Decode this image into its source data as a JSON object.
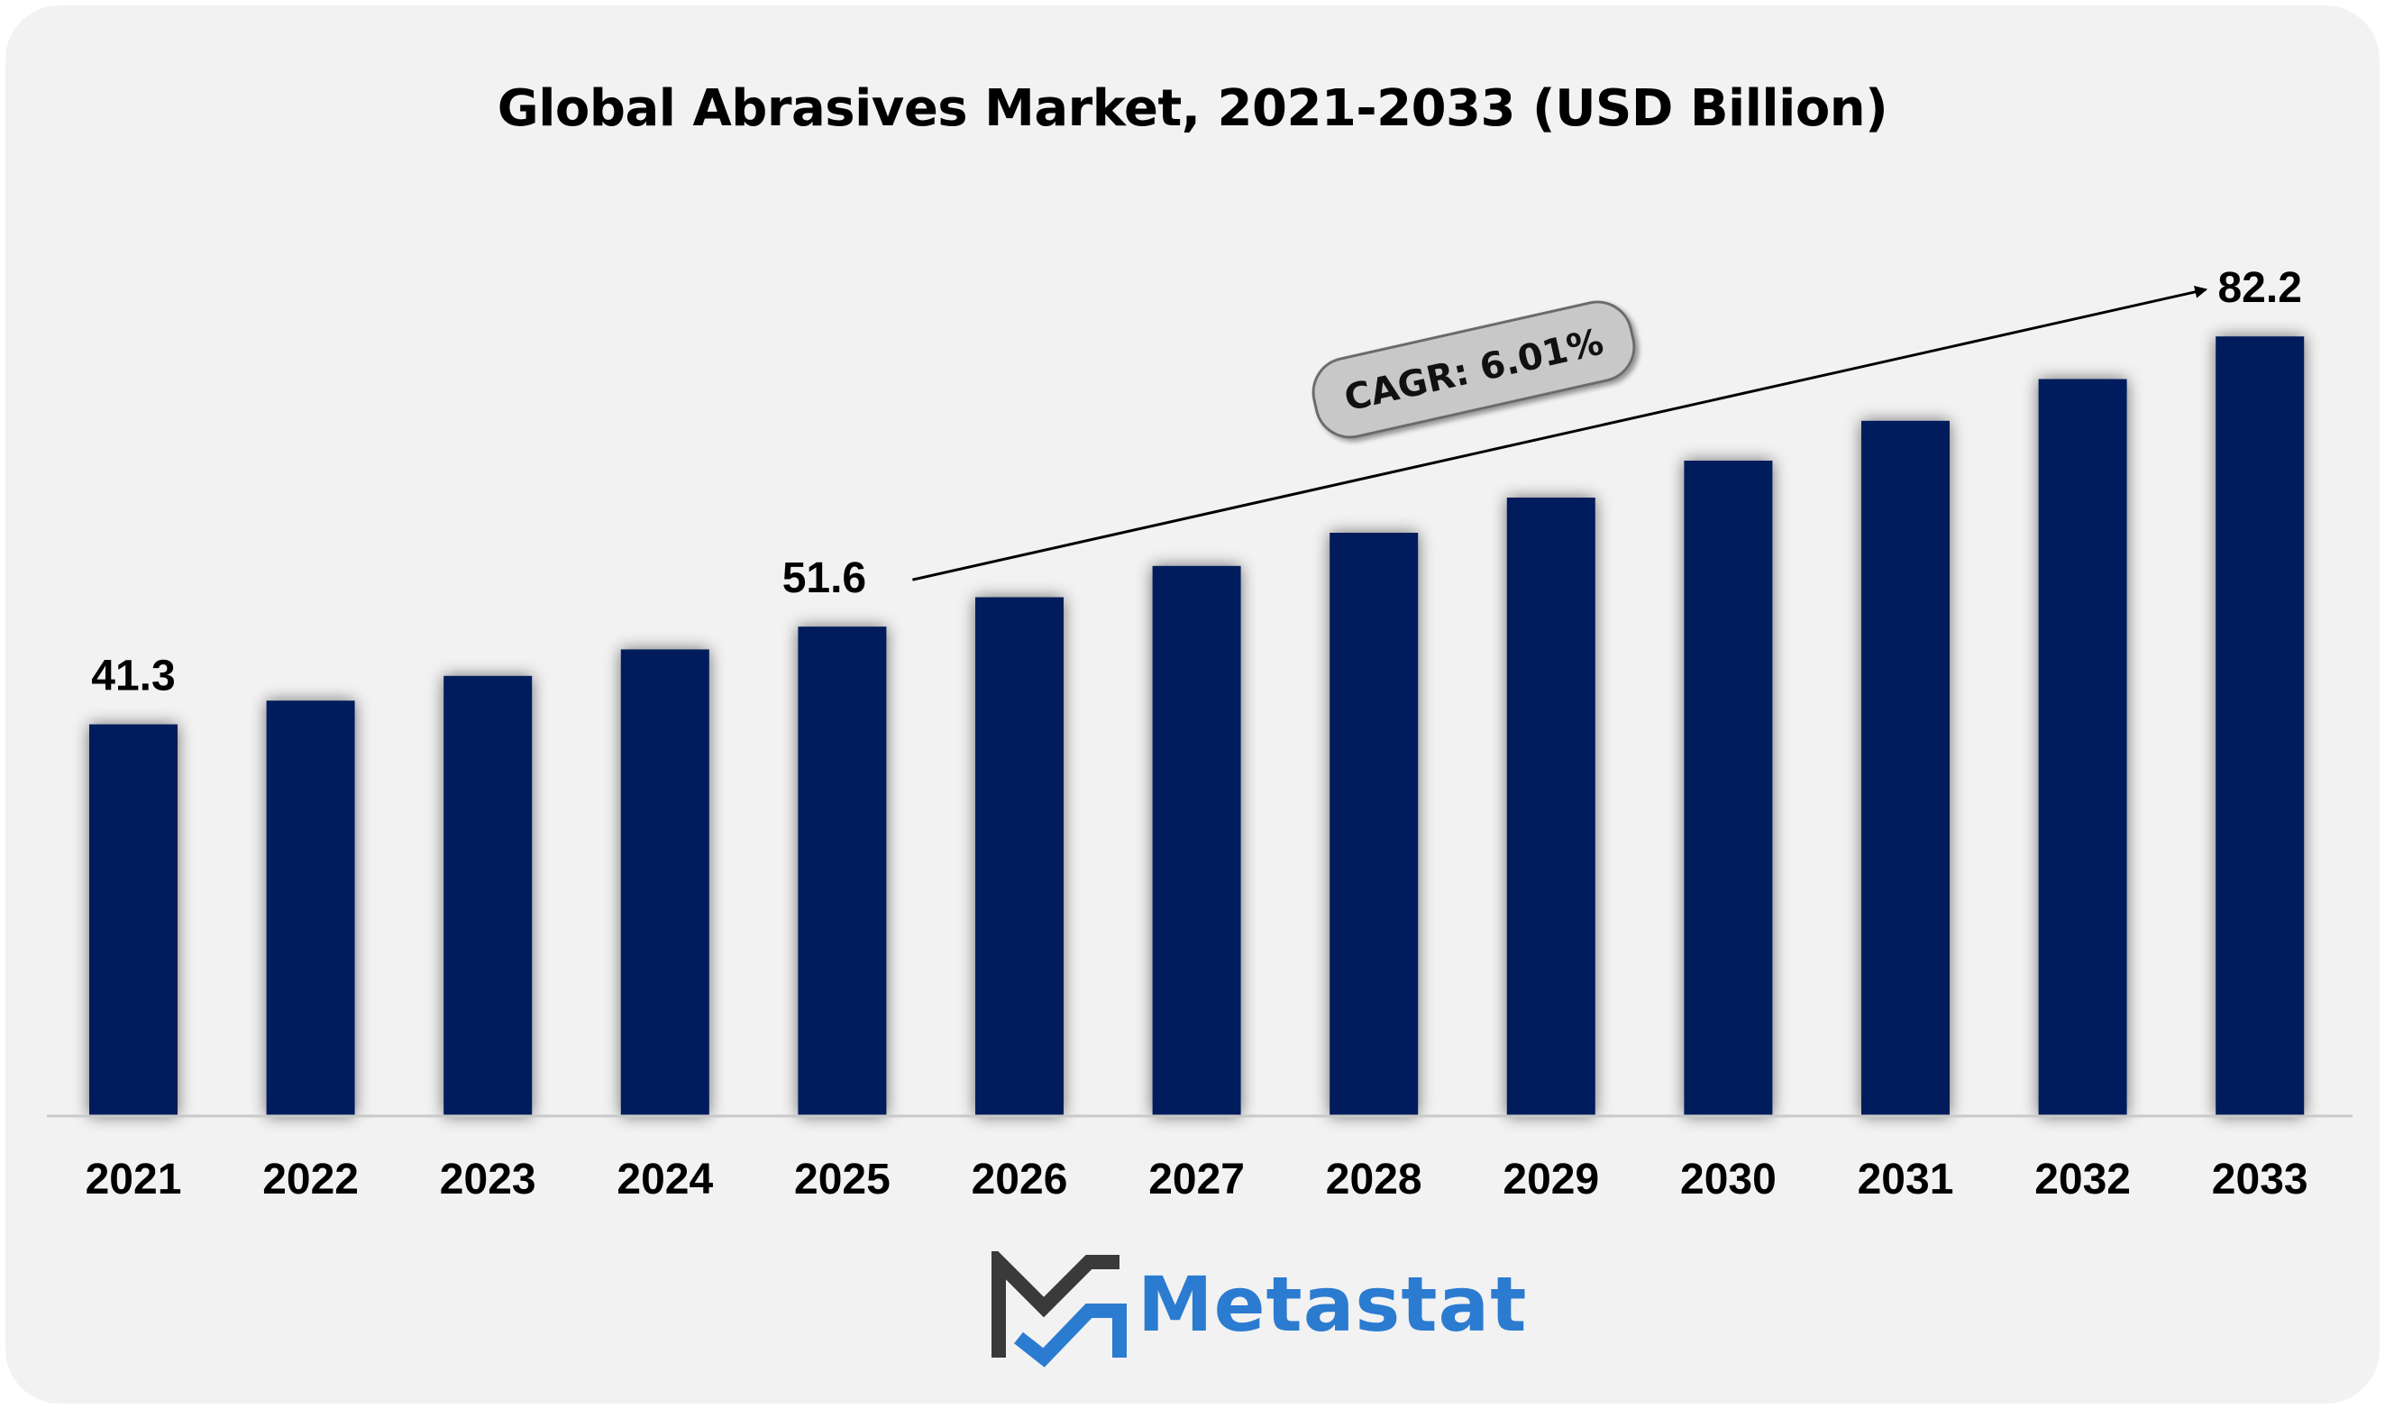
{
  "chart_data": {
    "type": "bar",
    "title": "Global Abrasives Market, 2021-2033 (USD Billion)",
    "categories": [
      "2021",
      "2022",
      "2023",
      "2024",
      "2025",
      "2026",
      "2027",
      "2028",
      "2029",
      "2030",
      "2031",
      "2032",
      "2033"
    ],
    "values": [
      41.3,
      43.8,
      46.4,
      49.2,
      51.6,
      54.7,
      58.0,
      61.5,
      65.2,
      69.1,
      73.3,
      77.7,
      82.2
    ],
    "data_labels": [
      {
        "category": "2021",
        "text": "41.3"
      },
      {
        "category": "2025",
        "text": "51.6"
      },
      {
        "category": "2033",
        "text": "82.2"
      }
    ],
    "annotation": "CAGR: 6.01%",
    "xlabel": "",
    "ylabel": "",
    "ylim": [
      0,
      90
    ],
    "grid": false,
    "legend": "none",
    "colors": {
      "bar": "#041e5c",
      "annotation_fill": "#c8c8c8",
      "background": "#f2f2f2"
    }
  },
  "branding": {
    "logo_text": "Metastat",
    "logo_text_color": "#2b7bd1",
    "logo_icon": "metastat-m-icon",
    "logo_icon_dark": "#3a3a3a",
    "logo_icon_accent": "#2b7bd1"
  }
}
